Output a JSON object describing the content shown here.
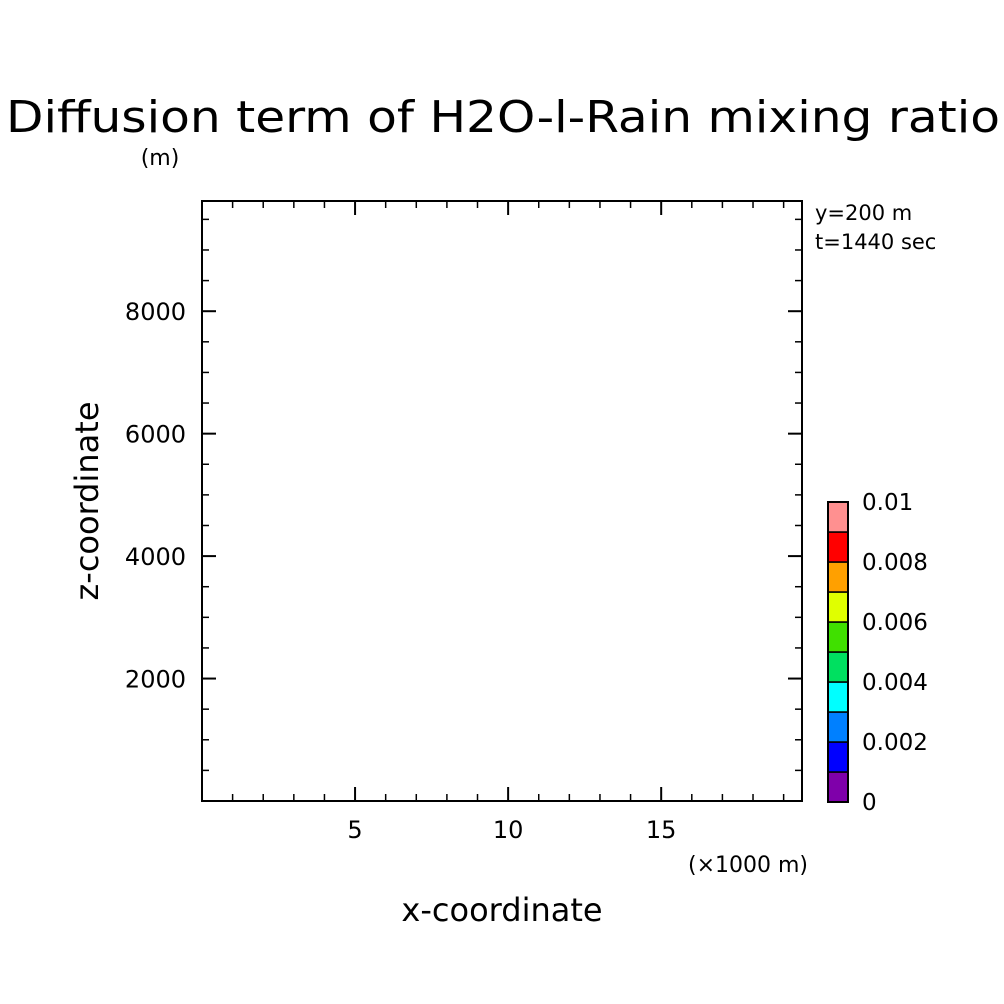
{
  "chart_data": {
    "type": "heatmap",
    "title": "Diffusion term of H2O-l-Rain mixing ratio",
    "xlabel": "x-coordinate",
    "ylabel": "z-coordinate",
    "x_unit": "(×1000 m)",
    "y_unit": "(m)",
    "xlim": [
      0,
      19.6
    ],
    "ylim": [
      0,
      9800
    ],
    "x_ticks": [
      5,
      10,
      15
    ],
    "x_tick_labels": [
      "5",
      "10",
      "15"
    ],
    "y_ticks": [
      2000,
      4000,
      6000,
      8000
    ],
    "y_tick_labels": [
      "2000",
      "4000",
      "6000",
      "8000"
    ],
    "x_minor_step": 1,
    "y_minor_step": 500,
    "annotations": [
      "y=200 m",
      "t=1440 sec"
    ],
    "colorbar": {
      "range": [
        0,
        0.01
      ],
      "tick_labels": [
        "0",
        "0.002",
        "0.004",
        "0.006",
        "0.008",
        "0.01"
      ],
      "colors": [
        "#7f00aa",
        "#0000ff",
        "#0080ff",
        "#00ffff",
        "#00e060",
        "#40e000",
        "#e0ff00",
        "#ffa000",
        "#ff0000",
        "#ff9090"
      ]
    },
    "values": []
  }
}
